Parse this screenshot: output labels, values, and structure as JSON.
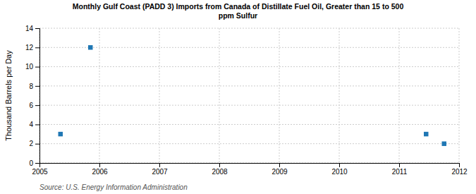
{
  "chart_data": {
    "type": "scatter",
    "title": "Monthly Gulf Coast (PADD 3) Imports from Canada of Distillate Fuel Oil, Greater than 15 to 500\nppm Sulfur",
    "ylabel": "Thousand Barrels per Day",
    "source": "Source: U.S. Energy Information Administration",
    "x": [
      2005.35,
      2005.85,
      2011.45,
      2011.75
    ],
    "values": [
      3.0,
      12.0,
      3.0,
      2.0
    ],
    "marker": "square",
    "xlim": [
      2005,
      2012
    ],
    "xticks": [
      2005,
      2006,
      2007,
      2008,
      2009,
      2010,
      2011,
      2012
    ],
    "ylim": [
      0,
      14
    ],
    "yticks": [
      0,
      2,
      4,
      6,
      8,
      10,
      12,
      14
    ],
    "grid": true
  }
}
